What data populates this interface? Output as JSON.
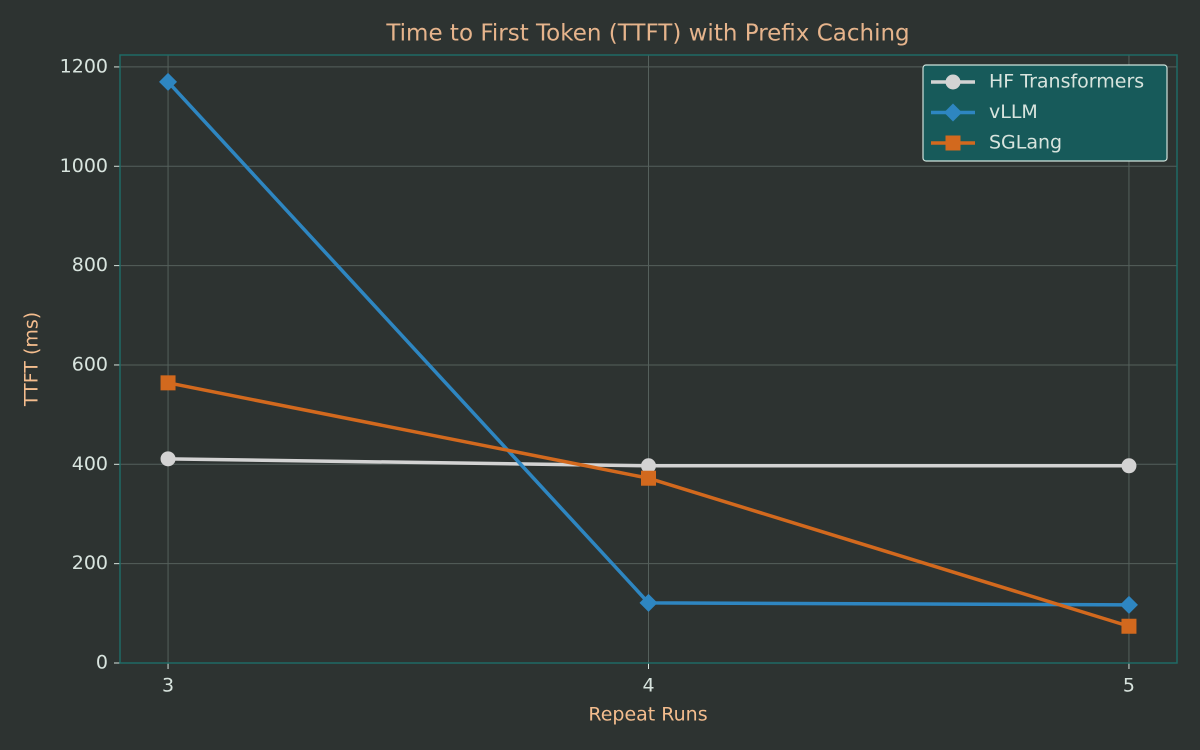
{
  "chart_data": {
    "type": "line",
    "title": "Time to First Token (TTFT) with Prefix Caching",
    "x_label": "Repeat Runs",
    "y_label": "TTFT (ms)",
    "x": [
      3,
      4,
      5
    ],
    "series": [
      {
        "name": "HF Transformers",
        "color": "#d3d3d3",
        "marker": "circle",
        "values": [
          411,
          397,
          397
        ]
      },
      {
        "name": "vLLM",
        "color": "#2e86c1",
        "marker": "diamond",
        "values": [
          1170,
          121,
          117
        ]
      },
      {
        "name": "SGLang",
        "color": "#d2691e",
        "marker": "square",
        "values": [
          564,
          372,
          74
        ]
      }
    ],
    "xlim": [
      2.9,
      5.1
    ],
    "xticks": [
      3,
      4,
      5
    ],
    "ylim": [
      0,
      1224
    ],
    "yticks": [
      0,
      200,
      400,
      600,
      800,
      1000,
      1200
    ],
    "grid": true,
    "legend": "upper right"
  }
}
